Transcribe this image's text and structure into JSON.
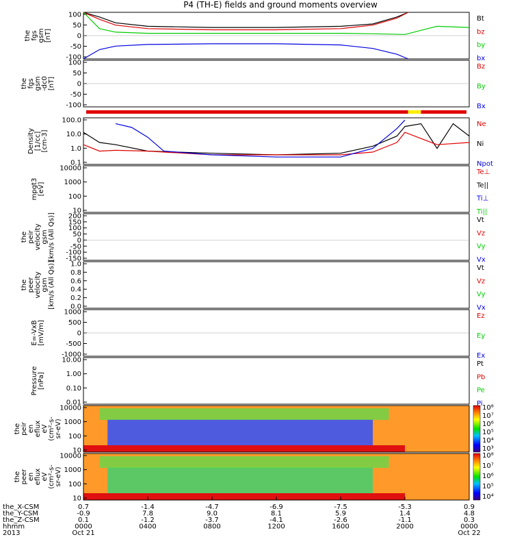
{
  "title": "P4 (TH-E) fields and ground moments overview",
  "colors": {
    "black": "#000000",
    "red": "#e00000",
    "green": "#00cc00",
    "blue": "#0000e0",
    "yellow": "#ffee00"
  },
  "panels": [
    {
      "id": "fgs_gsm_big",
      "ylabel": [
        "the",
        "fgs",
        "gsm",
        "[nT]"
      ],
      "ticks": [
        "100",
        "50",
        "0",
        "-50",
        "-100"
      ],
      "ylim": [
        -100,
        100
      ],
      "legend": [
        {
          "t": "Bt",
          "c": "black"
        },
        {
          "t": "bz",
          "c": "red"
        },
        {
          "t": "by",
          "c": "green"
        },
        {
          "t": "bx",
          "c": "blue"
        }
      ]
    },
    {
      "id": "fgs_gsm_small",
      "ylabel": [
        "the",
        "fgs",
        "gsm",
        "-dc0",
        "[nT]"
      ],
      "ticks": [
        "100",
        "50",
        "0",
        "-50",
        "-100"
      ],
      "ylim": [
        -120,
        120
      ],
      "legend": [
        {
          "t": "Bz",
          "c": "red"
        },
        {
          "t": "By",
          "c": "green"
        },
        {
          "t": "Bx",
          "c": "blue"
        }
      ]
    },
    {
      "id": "density",
      "ylabel": [
        "Density",
        "[1/cc]",
        "[cm-3]"
      ],
      "ticks": [
        "100.0",
        "10.0",
        "1.0",
        "0.1"
      ],
      "log": true,
      "ylim": [
        0.05,
        300
      ],
      "legend": [
        {
          "t": "Ne",
          "c": "red"
        },
        {
          "t": "Ni",
          "c": "black"
        },
        {
          "t": "Npot",
          "c": "blue"
        }
      ]
    },
    {
      "id": "temp",
      "ylabel": [
        "mpgt3",
        "[eV]"
      ],
      "ticks": [
        "10000",
        "1000",
        "100",
        "10"
      ],
      "log": true,
      "ylim": [
        3,
        12000
      ],
      "legend": [
        {
          "t": "Te⊥",
          "c": "red"
        },
        {
          "t": "Te||",
          "c": "black"
        },
        {
          "t": "Ti⊥",
          "c": "blue"
        },
        {
          "t": "Ti||",
          "c": "green"
        }
      ]
    },
    {
      "id": "peir_vel",
      "ylabel": [
        "the",
        "peir",
        "velocity",
        "gsm",
        "[km/s (All Qs)]"
      ],
      "ticks": [
        "200",
        "150",
        "100",
        "50",
        "0",
        "-50",
        "-100",
        "-150"
      ],
      "ylim": [
        -150,
        200
      ],
      "legend": [
        {
          "t": "Vt",
          "c": "black"
        },
        {
          "t": "Vz",
          "c": "red"
        },
        {
          "t": "Vy",
          "c": "green"
        },
        {
          "t": "Vx",
          "c": "blue"
        }
      ]
    },
    {
      "id": "peer_vel",
      "ylabel": [
        "the",
        "peer",
        "velocity",
        "gsm",
        "[km/s (All Qs)]"
      ],
      "ticks": [
        "1.0",
        "0.8",
        "0.6",
        "0.4",
        "0.2",
        "0.0"
      ],
      "ylim": [
        0,
        1
      ],
      "legend": [
        {
          "t": "Vt",
          "c": "black"
        },
        {
          "t": "Vz",
          "c": "red"
        },
        {
          "t": "Vy",
          "c": "green"
        },
        {
          "t": "Vx",
          "c": "blue"
        }
      ]
    },
    {
      "id": "efield",
      "ylabel": [
        "E=-VxB",
        "[mV/m]"
      ],
      "ticks": [
        "1000",
        "500",
        "0",
        "-500",
        "-1000"
      ],
      "ylim": [
        -1000,
        1000
      ],
      "legend": [
        {
          "t": "Ez",
          "c": "red"
        },
        {
          "t": "Ey",
          "c": "green"
        },
        {
          "t": "Ex",
          "c": "blue"
        }
      ]
    },
    {
      "id": "pressure",
      "ylabel": [
        "Pressure",
        "[nPa]"
      ],
      "ticks": [
        "10.00",
        "1.00",
        "0.10",
        "0.01"
      ],
      "log": true,
      "ylim": [
        0.005,
        30
      ],
      "legend": [
        {
          "t": "Pt",
          "c": "black"
        },
        {
          "t": "Pb",
          "c": "red"
        },
        {
          "t": "Pe",
          "c": "green"
        },
        {
          "t": "Pi",
          "c": "blue"
        }
      ]
    },
    {
      "id": "peir_eflux",
      "ylabel": [
        "the",
        "peir",
        "en",
        "eflux",
        "eV",
        "(cm²-s-",
        "sr-eV)"
      ],
      "ticks": [
        "10000",
        "1000",
        "100",
        "10"
      ],
      "spectro": true,
      "cbar": [
        "10⁸",
        "10⁷",
        "10⁶",
        "10⁵",
        "10⁴",
        "10³"
      ]
    },
    {
      "id": "peer_eflux",
      "ylabel": [
        "the",
        "peer",
        "en",
        "eflux",
        "eV",
        "(cm²-s-",
        "sr-eV)"
      ],
      "ticks": [
        "10000",
        "1000",
        "100",
        "10"
      ],
      "spectro": true,
      "cbar": [
        "10⁸",
        "10⁷",
        "10⁶",
        "10⁵",
        "10⁴"
      ]
    }
  ],
  "xaxis": {
    "row_labels": [
      "the_X-CSM",
      "the_Y-CSM",
      "the_Z-CSM",
      "hhmm",
      "2013"
    ],
    "columns": [
      {
        "v": [
          "0.7",
          "-0.9",
          "0.1",
          "0000",
          "Oct 21"
        ]
      },
      {
        "v": [
          "-1.4",
          "7.8",
          "-1.2",
          "0400",
          ""
        ]
      },
      {
        "v": [
          "-4.7",
          "9.0",
          "-3.7",
          "0800",
          ""
        ]
      },
      {
        "v": [
          "-6.9",
          "8.1",
          "-4.1",
          "1200",
          ""
        ]
      },
      {
        "v": [
          "-7.5",
          "5.9",
          "-2.6",
          "1600",
          ""
        ]
      },
      {
        "v": [
          "-5.3",
          "1.4",
          "-1.1",
          "2000",
          ""
        ]
      },
      {
        "v": [
          "0.9",
          "4.8",
          "0.3",
          "0000",
          "Oct 22"
        ]
      }
    ]
  },
  "chart_data": {
    "type": "line",
    "title": "P4 (TH-E) fields and ground moments overview",
    "x_hours": [
      0,
      4,
      8,
      12,
      16,
      20,
      24
    ],
    "series": [
      {
        "name": "Bt",
        "panel": "fgs_gsm_big",
        "color": "black",
        "x": [
          0,
          1,
          2,
          4,
          8,
          12,
          16,
          18,
          19.5,
          20.2
        ],
        "y": [
          100,
          80,
          55,
          40,
          35,
          35,
          40,
          50,
          80,
          100
        ]
      },
      {
        "name": "bz",
        "panel": "fgs_gsm_big",
        "color": "red",
        "x": [
          0,
          1,
          2,
          4,
          8,
          12,
          16,
          18,
          19.5,
          20.2
        ],
        "y": [
          100,
          70,
          45,
          30,
          25,
          25,
          30,
          45,
          75,
          100
        ]
      },
      {
        "name": "by",
        "panel": "fgs_gsm_big",
        "color": "green",
        "x": [
          0,
          1,
          2,
          4,
          8,
          12,
          16,
          18,
          20,
          22,
          24
        ],
        "y": [
          100,
          30,
          15,
          10,
          10,
          10,
          10,
          8,
          5,
          40,
          35
        ]
      },
      {
        "name": "bx",
        "panel": "fgs_gsm_big",
        "color": "blue",
        "x": [
          0,
          1,
          2,
          4,
          8,
          12,
          16,
          18,
          19.5,
          20.2
        ],
        "y": [
          -100,
          -60,
          -45,
          -38,
          -35,
          -35,
          -40,
          -55,
          -80,
          -100
        ]
      },
      {
        "name": "Ni",
        "panel": "density",
        "color": "black",
        "x": [
          0,
          1,
          2,
          4,
          8,
          12,
          16,
          18,
          19.5,
          20,
          21,
          22,
          23,
          24
        ],
        "y": [
          20,
          3,
          2,
          0.6,
          0.4,
          0.3,
          0.4,
          1.5,
          10,
          60,
          100,
          1,
          100,
          10
        ]
      },
      {
        "name": "Ne",
        "panel": "density",
        "color": "red",
        "x": [
          0,
          1,
          2,
          4,
          8,
          12,
          16,
          18,
          19.5,
          20,
          22,
          24
        ],
        "y": [
          2,
          0.6,
          0.7,
          0.6,
          0.3,
          0.3,
          0.3,
          0.5,
          3,
          20,
          2,
          3
        ]
      },
      {
        "name": "Npot",
        "panel": "density",
        "color": "blue",
        "x": [
          2,
          3,
          4,
          5,
          8,
          12,
          16,
          18,
          19.5,
          20
        ],
        "y": [
          100,
          50,
          8,
          0.6,
          0.3,
          0.2,
          0.2,
          1,
          40,
          200
        ]
      }
    ]
  }
}
